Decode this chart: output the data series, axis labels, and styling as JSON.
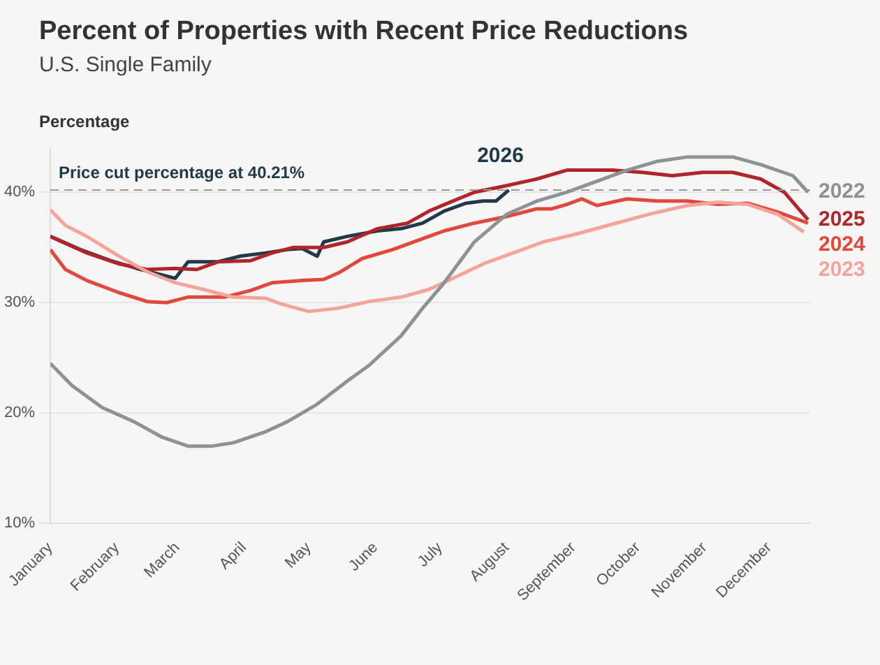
{
  "chart_data": {
    "type": "line",
    "title": "Percent of Properties with Recent Price Reductions",
    "subtitle": "U.S. Single Family",
    "ylabel": "Percentage",
    "xlim": [
      "--01-01",
      "--12-20"
    ],
    "xticks": [
      {
        "value": "--01-01",
        "label": "January"
      },
      {
        "value": "--02-01",
        "label": "February"
      },
      {
        "value": "--03-01",
        "label": "March"
      },
      {
        "value": "--04-01",
        "label": "April"
      },
      {
        "value": "--05-01",
        "label": "May"
      },
      {
        "value": "--06-01",
        "label": "June"
      },
      {
        "value": "--07-01",
        "label": "July"
      },
      {
        "value": "--08-01",
        "label": "August"
      },
      {
        "value": "--09-01",
        "label": "September"
      },
      {
        "value": "--10-01",
        "label": "October"
      },
      {
        "value": "--11-01",
        "label": "November"
      },
      {
        "value": "--12-01",
        "label": "December"
      }
    ],
    "ylim": [
      10,
      44
    ],
    "yticks": [
      {
        "value": 10,
        "label": "10%"
      },
      {
        "value": 20,
        "label": "20%"
      },
      {
        "value": 30,
        "label": "30%"
      },
      {
        "value": 40,
        "label": "40%"
      }
    ],
    "grid": "y",
    "legend": false,
    "marker": "none",
    "line_style": "solid",
    "ref_lines": [
      {
        "axis": "y",
        "value": 40.21,
        "label": "Price cut percentage at 40.21%",
        "color": "#999999",
        "line_style": "dashed"
      }
    ],
    "series": [
      {
        "name": "2022",
        "color": "#8c9396",
        "x": [
          "--01-01",
          "--01-11",
          "--01-25",
          "--02-09",
          "--02-22",
          "--03-06",
          "--03-17",
          "--03-27",
          "--04-11",
          "--04-21",
          "--05-05",
          "--05-19",
          "--05-29",
          "--06-13",
          "--06-23",
          "--07-03",
          "--07-17",
          "--08-01",
          "--08-15",
          "--08-29",
          "--09-12",
          "--09-26",
          "--10-10",
          "--10-24",
          "--11-14",
          "--11-27",
          "--12-12",
          "--12-19"
        ],
        "values": [
          24.5,
          22.5,
          20.5,
          19.2,
          17.8,
          17,
          17,
          17.3,
          18.3,
          19.2,
          20.8,
          22.9,
          24.3,
          27,
          29.5,
          31.8,
          35.5,
          38,
          39.2,
          40,
          41,
          42,
          42.8,
          43.2,
          43.2,
          42.5,
          41.5,
          40
        ]
      },
      {
        "name": "2023",
        "color": "#f4a49a",
        "x": [
          "--01-01",
          "--01-08",
          "--01-18",
          "--02-02",
          "--02-15",
          "--02-28",
          "--03-13",
          "--03-27",
          "--04-11",
          "--04-18",
          "--05-01",
          "--05-15",
          "--05-29",
          "--06-13",
          "--06-26",
          "--07-07",
          "--07-21",
          "--08-04",
          "--08-18",
          "--09-02",
          "--09-19",
          "--10-06",
          "--10-24",
          "--11-07",
          "--11-21",
          "--12-05",
          "--12-17"
        ],
        "values": [
          38.4,
          37,
          36,
          34.2,
          32.8,
          31.8,
          31.2,
          30.5,
          30.4,
          29.9,
          29.2,
          29.5,
          30.1,
          30.5,
          31.2,
          32.2,
          33.5,
          34.5,
          35.5,
          36.2,
          37.1,
          38,
          38.8,
          39.1,
          38.9,
          38,
          36.4
        ]
      },
      {
        "name": "2024",
        "color": "#e0483c",
        "x": [
          "--01-01",
          "--01-08",
          "--01-18",
          "--02-02",
          "--02-15",
          "--02-24",
          "--03-06",
          "--03-23",
          "--04-04",
          "--04-14",
          "--04-28",
          "--05-08",
          "--05-15",
          "--05-26",
          "--06-09",
          "--06-23",
          "--07-03",
          "--07-17",
          "--08-01",
          "--08-15",
          "--08-22",
          "--08-29",
          "--09-05",
          "--09-12",
          "--09-26",
          "--10-10",
          "--10-24",
          "--11-07",
          "--11-21",
          "--12-05",
          "--12-19"
        ],
        "values": [
          34.8,
          33,
          32,
          30.9,
          30.1,
          30,
          30.5,
          30.5,
          31.1,
          31.8,
          32,
          32.1,
          32.7,
          34,
          34.8,
          35.8,
          36.5,
          37.2,
          37.8,
          38.5,
          38.5,
          38.9,
          39.4,
          38.8,
          39.4,
          39.2,
          39.2,
          38.9,
          39,
          38.2,
          37.2
        ]
      },
      {
        "name": "2025",
        "color": "#b0242a",
        "x": [
          "--01-01",
          "--01-18",
          "--02-02",
          "--02-15",
          "--02-28",
          "--03-10",
          "--03-20",
          "--04-04",
          "--04-14",
          "--04-24",
          "--05-08",
          "--05-19",
          "--06-02",
          "--06-16",
          "--06-26",
          "--07-07",
          "--07-17",
          "--08-01",
          "--08-15",
          "--08-29",
          "--09-19",
          "--10-03",
          "--10-17",
          "--10-31",
          "--11-14",
          "--11-27",
          "--12-08",
          "--12-19"
        ],
        "values": [
          36,
          34.5,
          33.5,
          33,
          33.1,
          33,
          33.7,
          33.8,
          34.5,
          35,
          35,
          35.5,
          36.7,
          37.2,
          38.3,
          39.2,
          40,
          40.6,
          41.2,
          42,
          42,
          41.8,
          41.5,
          41.8,
          41.8,
          41.2,
          40,
          37.5
        ]
      },
      {
        "name": "2026",
        "color": "#1f3a4a",
        "x": [
          "--01-01",
          "--01-15",
          "--01-29",
          "--02-12",
          "--02-22",
          "--02-28",
          "--03-06",
          "--03-20",
          "--03-30",
          "--04-11",
          "--04-21",
          "--04-28",
          "--05-05",
          "--05-08",
          "--05-19",
          "--06-02",
          "--06-13",
          "--06-23",
          "--07-03",
          "--07-13",
          "--07-21",
          "--07-27",
          "--08-02"
        ],
        "values": [
          36,
          34.8,
          33.8,
          33,
          32.5,
          32.2,
          33.7,
          33.7,
          34.2,
          34.5,
          34.8,
          34.9,
          34.2,
          35.5,
          36,
          36.5,
          36.7,
          37.2,
          38.3,
          39,
          39.2,
          39.2,
          40.2
        ]
      }
    ]
  }
}
